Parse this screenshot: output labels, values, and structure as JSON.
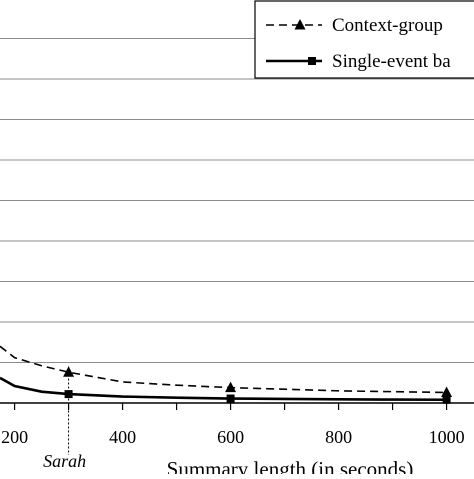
{
  "chart_data": {
    "type": "line",
    "xlabel": "Summary length (in seconds)",
    "ylabel": "",
    "title": "",
    "x_ticks": [
      200,
      400,
      600,
      800,
      1000
    ],
    "x_tick_labels": [
      "200",
      "400",
      "600",
      "800",
      "1000"
    ],
    "x_visible_range": [
      173,
      1000
    ],
    "gridlines": "horizontal",
    "grid_count": 10,
    "legend_position": "top-right",
    "series": [
      {
        "name": "Context-group",
        "legend_text": "Context-group",
        "style": "dashed",
        "marker": "triangle",
        "x": [
          173,
          200,
          250,
          300,
          400,
          500,
          600,
          700,
          800,
          900,
          1000
        ],
        "y": [
          1.4,
          1.12,
          0.92,
          0.76,
          0.52,
          0.44,
          0.38,
          0.34,
          0.3,
          0.28,
          0.26
        ],
        "marker_x": [
          300,
          600,
          1000
        ],
        "marker_y": [
          0.76,
          0.38,
          0.26
        ]
      },
      {
        "name": "Single-event",
        "legend_text": "Single-event ba",
        "style": "solid",
        "marker": "square",
        "x": [
          173,
          200,
          250,
          300,
          400,
          500,
          600,
          700,
          800,
          900,
          1000
        ],
        "y": [
          0.62,
          0.42,
          0.28,
          0.22,
          0.16,
          0.13,
          0.11,
          0.1,
          0.09,
          0.085,
          0.08
        ],
        "marker_x": [
          300,
          600,
          1000
        ],
        "marker_y": [
          0.22,
          0.11,
          0.08
        ]
      }
    ],
    "annotations": [
      {
        "text": "Sarah",
        "x": 300
      }
    ]
  }
}
